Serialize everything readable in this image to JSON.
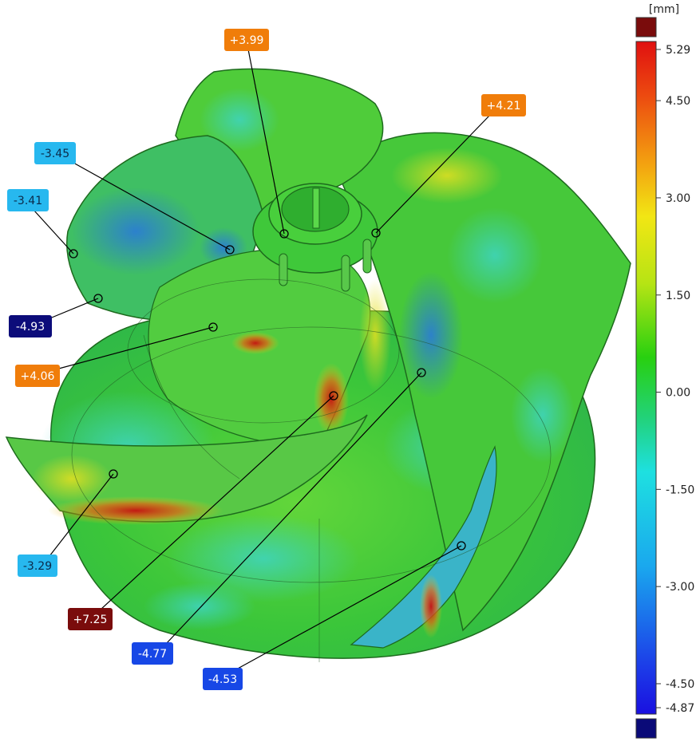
{
  "scale": {
    "unit": "[mm]",
    "min": -4.87,
    "max": 5.29,
    "ticks": [
      "5.29",
      "4.50",
      "3.00",
      "1.50",
      "0.00",
      "-1.50",
      "-3.00",
      "-4.50",
      "-4.87"
    ],
    "over_color": "#7a0c0c",
    "under_color": "#0a0a78"
  },
  "callouts": [
    {
      "label": "+3.99",
      "value": 3.99,
      "color": "#f07d0a",
      "text_color": "#ffffff"
    },
    {
      "label": "+4.21",
      "value": 4.21,
      "color": "#f07d0a",
      "text_color": "#ffffff"
    },
    {
      "label": "-3.45",
      "value": -3.45,
      "color": "#27b8ef",
      "text_color": "#0b2a4a"
    },
    {
      "label": "-3.41",
      "value": -3.41,
      "color": "#27b8ef",
      "text_color": "#0b2a4a"
    },
    {
      "label": "-4.93",
      "value": -4.93,
      "color": "#0c0c7a",
      "text_color": "#ffffff"
    },
    {
      "label": "+4.06",
      "value": 4.06,
      "color": "#f07d0a",
      "text_color": "#ffffff"
    },
    {
      "label": "-3.29",
      "value": -3.29,
      "color": "#27b8ef",
      "text_color": "#0b2a4a"
    },
    {
      "label": "+7.25",
      "value": 7.25,
      "color": "#7a0c0c",
      "text_color": "#ffffff"
    },
    {
      "label": "-4.77",
      "value": -4.77,
      "color": "#1747e6",
      "text_color": "#ffffff"
    },
    {
      "label": "-4.53",
      "value": -4.53,
      "color": "#1747e6",
      "text_color": "#ffffff"
    }
  ]
}
